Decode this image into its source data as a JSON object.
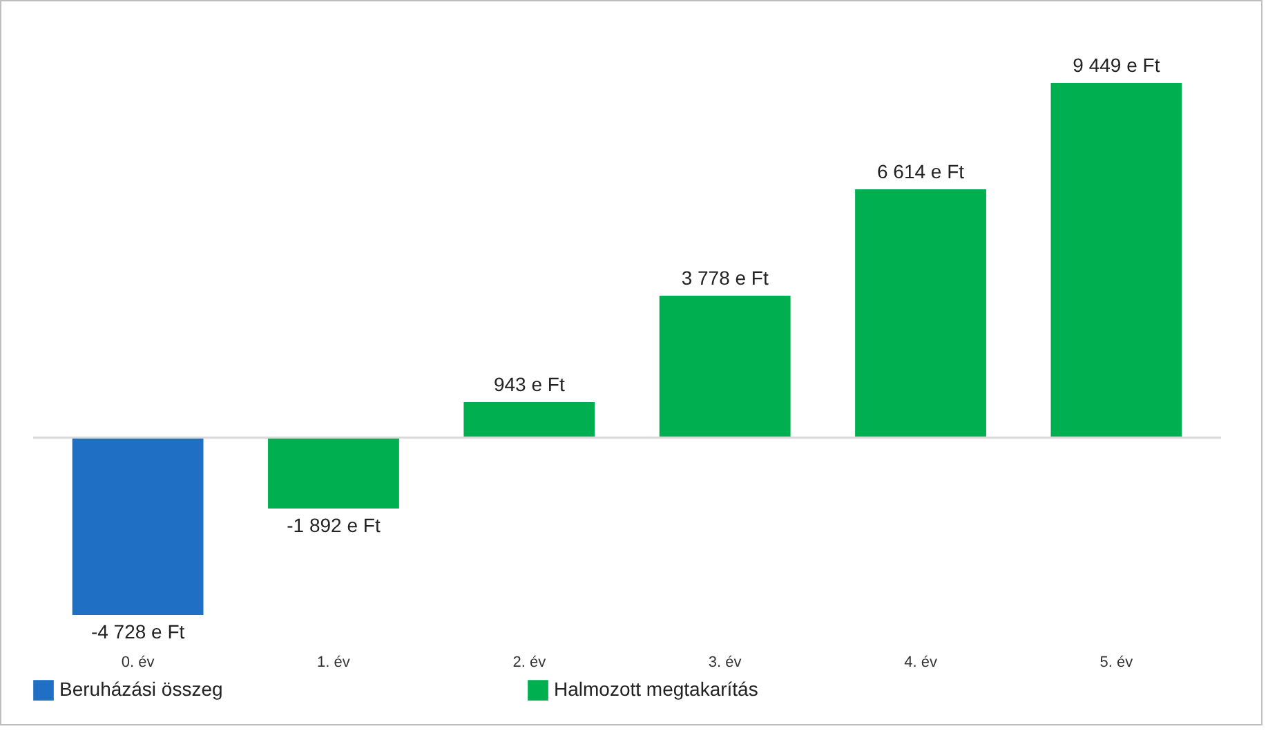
{
  "chart_data": {
    "type": "bar",
    "categories": [
      "0. év",
      "1. év",
      "2. év",
      "3. év",
      "4. év",
      "5. év"
    ],
    "series": [
      {
        "name": "Beruházási összeg",
        "color": "#1f6fc5",
        "values": [
          -4728,
          null,
          null,
          null,
          null,
          null
        ],
        "value_labels": [
          "-4 728 e Ft",
          null,
          null,
          null,
          null,
          null
        ]
      },
      {
        "name": "Halmozott megtakarítás",
        "color": "#00b050",
        "values": [
          null,
          -1892,
          943,
          3778,
          6614,
          9449
        ],
        "value_labels": [
          null,
          "-1 892 e Ft",
          "943 e Ft",
          "3 778 e Ft",
          "6 614 e Ft",
          "9 449 e Ft"
        ]
      }
    ],
    "ref_lines": [
      {
        "axis": "y",
        "value": 0,
        "color": "#d9d9d9"
      }
    ],
    "tick_labels": "x",
    "grid": false,
    "legend": "bottom"
  }
}
